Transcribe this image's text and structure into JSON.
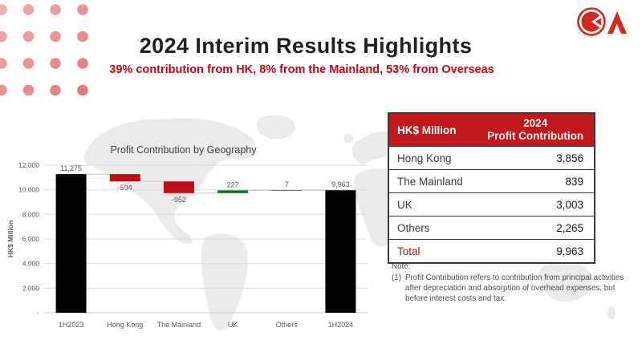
{
  "slide": {
    "title": "2024 Interim Results Highlights",
    "subtitle": "39% contribution from HK, 8% from the Mainland, 53% from Overseas"
  },
  "chart_data": {
    "type": "bar",
    "subtype": "waterfall",
    "title": "Profit Contribution by Geography",
    "xlabel": "",
    "ylabel": "HK$ Million",
    "ylim": [
      0,
      12000
    ],
    "grid": true,
    "legend": "none",
    "categories": [
      "1H2023",
      "Hong Kong",
      "The Mainland",
      "UK",
      "Others",
      "1H2024"
    ],
    "bars": [
      {
        "category": "1H2023",
        "kind": "total",
        "value": 11275,
        "label": "11,275",
        "label_pos": "above"
      },
      {
        "category": "Hong Kong",
        "kind": "decrease",
        "value": -594,
        "label": "-594",
        "label_pos": "below"
      },
      {
        "category": "The Mainland",
        "kind": "decrease",
        "value": -952,
        "label": "-952",
        "label_pos": "below"
      },
      {
        "category": "UK",
        "kind": "increase",
        "value": 227,
        "label": "227",
        "label_pos": "above"
      },
      {
        "category": "Others",
        "kind": "increase",
        "value": 7,
        "label": "7",
        "label_pos": "above"
      },
      {
        "category": "1H2024",
        "kind": "total",
        "value": 9963,
        "label": "9,963",
        "label_pos": "above"
      }
    ],
    "yticks": [
      {
        "value": 12000,
        "label": "12,000"
      },
      {
        "value": 10000,
        "label": "10,000"
      },
      {
        "value": 8000,
        "label": "8,000"
      },
      {
        "value": 6000,
        "label": "6,000"
      },
      {
        "value": 4000,
        "label": "4,000"
      },
      {
        "value": 2000,
        "label": "2,000"
      },
      {
        "value": 0,
        "label": "-"
      }
    ],
    "colors": {
      "total": "#000000",
      "decrease": "#c00c15",
      "increase": "#17701f",
      "gridline": "#dcdcdc",
      "connector": "#c0c0c0",
      "axis_text": "#595959",
      "title_text": "#404040"
    }
  },
  "table": {
    "header": {
      "col1": "HK$ Million",
      "col2_line1": "2024",
      "col2_line2": "Profit Contribution"
    },
    "rows": [
      {
        "label": "Hong Kong",
        "value": "3,856"
      },
      {
        "label": "The Mainland",
        "value": "839"
      },
      {
        "label": "UK",
        "value": "3,003"
      },
      {
        "label": "Others",
        "value": "2,265"
      }
    ],
    "total_row": {
      "label": "Total",
      "value": "9,963"
    },
    "header_bg": "#c2181c"
  },
  "note": {
    "heading": "Note:",
    "item_number": "(1)",
    "item_text": "Profit Contribution refers to contribution from principal activities after depreciation and absorption of overhead expenses, but before interest costs and tax."
  },
  "branding": {
    "logo_name": "ck-asset-logo",
    "accent_red": "#c0161c",
    "dot_pink": "#e58c8f"
  }
}
